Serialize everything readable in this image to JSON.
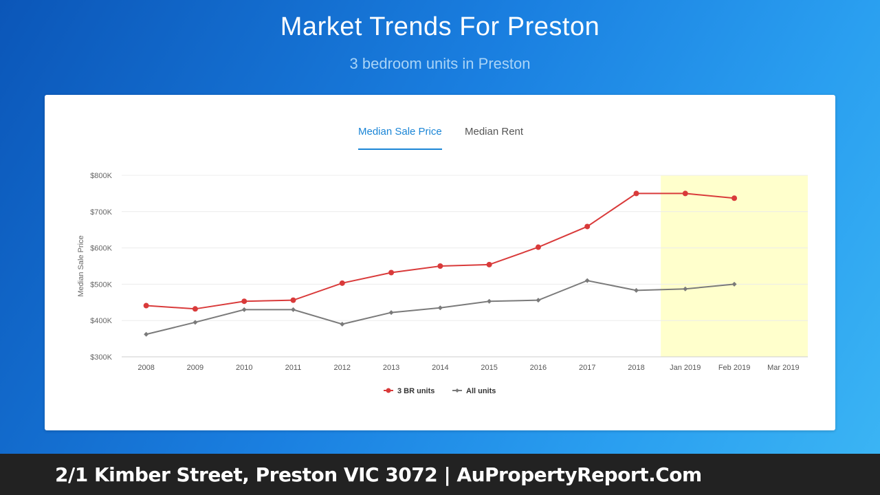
{
  "header": {
    "title": "Market Trends For Preston",
    "subtitle": "3 bedroom units in Preston"
  },
  "tabs": [
    {
      "label": "Median Sale Price",
      "active": true
    },
    {
      "label": "Median Rent",
      "active": false
    }
  ],
  "footer": {
    "text": "2/1 Kimber Street, Preston VIC 3072 | AuPropertyReport.Com"
  },
  "colors": {
    "accent": "#1a85d6",
    "series_3br": "#d93a3a",
    "series_all": "#7a7a7a",
    "highlight": "#ffffcc"
  },
  "chart_data": {
    "type": "line",
    "title": "",
    "xlabel": "",
    "ylabel": "Median Sale Price",
    "categories": [
      "2008",
      "2009",
      "2010",
      "2011",
      "2012",
      "2013",
      "2014",
      "2015",
      "2016",
      "2017",
      "2018",
      "Jan 2019",
      "Feb 2019",
      "Mar 2019"
    ],
    "ylim": [
      300000,
      800000
    ],
    "yticks": [
      300000,
      400000,
      500000,
      600000,
      700000,
      800000
    ],
    "ytick_labels": [
      "$300K",
      "$400K",
      "$500K",
      "$600K",
      "$700K",
      "$800K"
    ],
    "highlight_range": [
      "Jan 2019",
      "Mar 2019"
    ],
    "grid": true,
    "legend_position": "bottom",
    "series": [
      {
        "name": "3 BR units",
        "marker": "circle",
        "values": [
          441000,
          432000,
          453000,
          456000,
          503000,
          532000,
          550000,
          554000,
          602000,
          659000,
          750000,
          750000,
          737000,
          null
        ]
      },
      {
        "name": "All units",
        "marker": "diamond",
        "values": [
          362000,
          395000,
          430000,
          430000,
          390000,
          422000,
          435000,
          453000,
          456000,
          510000,
          483000,
          487000,
          500000,
          null
        ]
      }
    ]
  }
}
